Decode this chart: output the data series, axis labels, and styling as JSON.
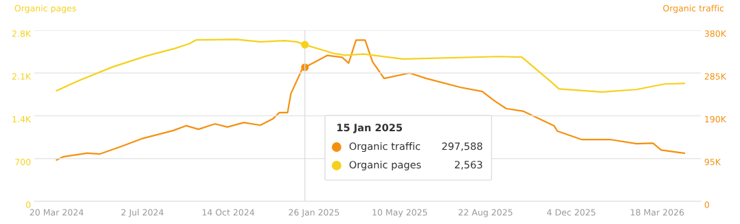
{
  "chart_data": {
    "type": "line",
    "ylabel": "Organic pages",
    "y2label": "Organic traffic",
    "legend_title": "15 Jan 2025",
    "legend": "bottom",
    "grid": "y",
    "marker": "none",
    "line_style": "solid",
    "xlim": [
      "2024-02-22",
      "2026-05-10"
    ],
    "xticks": [
      {
        "value": "2024-03-20",
        "label": "20 Mar 2024"
      },
      {
        "value": "2024-07-02",
        "label": "2 Jul 2024"
      },
      {
        "value": "2024-10-14",
        "label": "14 Oct 2024"
      },
      {
        "value": "2025-01-26",
        "label": "26 Jan 2025"
      },
      {
        "value": "2025-05-10",
        "label": "10 May 2025"
      },
      {
        "value": "2025-08-22",
        "label": "22 Aug 2025"
      },
      {
        "value": "2025-12-04",
        "label": "4 Dec 2025"
      },
      {
        "value": "2026-03-18",
        "label": "18 Mar 2026"
      }
    ],
    "ylim": [
      0,
      2800
    ],
    "yticks": [
      0,
      {
        "value": 700,
        "label": "700"
      },
      {
        "value": 1400,
        "label": "1.4K"
      },
      {
        "value": 2100,
        "label": "2.1K"
      },
      {
        "value": 2800,
        "label": "2.8K"
      }
    ],
    "y2lim": [
      0,
      380000
    ],
    "y2ticks": [
      0,
      {
        "value": 95000,
        "label": "95K"
      },
      {
        "value": 190000,
        "label": "190K"
      },
      {
        "value": 285000,
        "label": "285K"
      },
      {
        "value": 380000,
        "label": "380K"
      }
    ],
    "ref_lines": [
      {
        "axis": "x",
        "value": "2025-01-15",
        "color": "#dddddd"
      }
    ],
    "annotations": [
      "297,588",
      "2,563"
    ],
    "series": [
      {
        "name": "Organic traffic",
        "color": "#f5900f",
        "axis": "y2",
        "x": [
          "2024-03-20",
          "2024-03-28",
          "2024-04-26",
          "2024-05-11",
          "2024-06-05",
          "2024-07-01",
          "2024-08-08",
          "2024-08-24",
          "2024-09-08",
          "2024-09-28",
          "2024-10-13",
          "2024-11-02",
          "2024-11-22",
          "2024-12-07",
          "2024-12-15",
          "2024-12-25",
          "2024-12-29",
          "2025-01-12",
          "2025-01-15",
          "2025-02-11",
          "2025-03-01",
          "2025-03-09",
          "2025-03-18",
          "2025-03-29",
          "2025-04-07",
          "2025-04-21",
          "2025-05-22",
          "2025-06-11",
          "2025-07-23",
          "2025-08-18",
          "2025-09-02",
          "2025-09-16",
          "2025-10-07",
          "2025-10-17",
          "2025-11-13",
          "2025-11-17",
          "2025-12-17",
          "2026-01-21",
          "2026-02-21",
          "2026-03-13",
          "2026-03-23",
          "2026-04-20"
        ],
        "values": [
          92000,
          99000,
          107000,
          105000,
          121000,
          139000,
          157000,
          168000,
          160000,
          172000,
          165000,
          175000,
          169000,
          183000,
          197000,
          197000,
          239000,
          295000,
          297588,
          324000,
          320000,
          307000,
          358000,
          358000,
          310000,
          273000,
          285000,
          273000,
          253000,
          244000,
          223000,
          206000,
          200000,
          191000,
          168000,
          156000,
          137000,
          137000,
          128000,
          129000,
          114000,
          107000
        ]
      },
      {
        "name": "Organic pages",
        "color": "#f5d11c",
        "axis": "y",
        "x": [
          "2024-03-20",
          "2024-04-15",
          "2024-05-27",
          "2024-07-07",
          "2024-08-10",
          "2024-08-28",
          "2024-09-05",
          "2024-10-24",
          "2024-11-22",
          "2024-12-21",
          "2025-01-05",
          "2025-01-15",
          "2025-02-19",
          "2025-03-05",
          "2025-03-27",
          "2025-05-14",
          "2025-09-08",
          "2025-10-05",
          "2025-11-09",
          "2025-11-19",
          "2026-01-10",
          "2026-02-21",
          "2026-03-27",
          "2026-04-20"
        ],
        "values": [
          1810,
          1970,
          2200,
          2380,
          2500,
          2580,
          2640,
          2650,
          2610,
          2630,
          2610,
          2563,
          2420,
          2390,
          2410,
          2330,
          2370,
          2360,
          1960,
          1840,
          1790,
          1830,
          1920,
          1930
        ]
      }
    ]
  }
}
